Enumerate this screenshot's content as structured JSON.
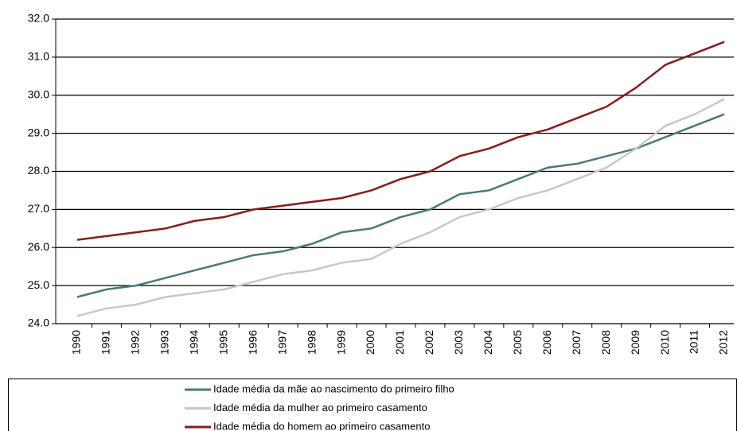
{
  "chart_data": {
    "type": "line",
    "categories": [
      "1990",
      "1991",
      "1992",
      "1993",
      "1994",
      "1995",
      "1996",
      "1997",
      "1998",
      "1999",
      "2000",
      "2001",
      "2002",
      "2003",
      "2004",
      "2005",
      "2006",
      "2007",
      "2008",
      "2009",
      "2010",
      "2011",
      "2012"
    ],
    "series": [
      {
        "name": "Idade média da mãe ao nascimento do primeiro filho",
        "color": "#4a7b73",
        "values": [
          24.7,
          24.9,
          25.0,
          25.2,
          25.4,
          25.6,
          25.8,
          25.9,
          26.1,
          26.4,
          26.5,
          26.8,
          27.0,
          27.4,
          27.5,
          27.8,
          28.1,
          28.2,
          28.4,
          28.6,
          28.9,
          29.2,
          29.5
        ]
      },
      {
        "name": "Idade média da mulher ao primeiro casamento",
        "color": "#c8c8c8",
        "values": [
          24.2,
          24.4,
          24.5,
          24.7,
          24.8,
          24.9,
          25.1,
          25.3,
          25.4,
          25.6,
          25.7,
          26.1,
          26.4,
          26.8,
          27.0,
          27.3,
          27.5,
          27.8,
          28.1,
          28.6,
          29.2,
          29.5,
          29.9
        ]
      },
      {
        "name": "Idade média do homem ao primeiro casamento",
        "color": "#8b1a1a",
        "values": [
          26.2,
          26.3,
          26.4,
          26.5,
          26.7,
          26.8,
          27.0,
          27.1,
          27.2,
          27.3,
          27.5,
          27.8,
          28.0,
          28.4,
          28.6,
          28.9,
          29.1,
          29.4,
          29.7,
          30.2,
          30.8,
          31.1,
          31.4
        ]
      }
    ],
    "ylim": [
      24,
      32
    ],
    "yticks": [
      {
        "value": 24,
        "label": "24.0"
      },
      {
        "value": 25,
        "label": "25.0"
      },
      {
        "value": 26,
        "label": "26.0"
      },
      {
        "value": 27,
        "label": "27.0"
      },
      {
        "value": 28,
        "label": "28.0"
      },
      {
        "value": 29,
        "label": "29.0"
      },
      {
        "value": 30,
        "label": "30.0"
      },
      {
        "value": 31,
        "label": "31.0"
      },
      {
        "value": 32,
        "label": "32.0"
      }
    ],
    "grid": true
  }
}
